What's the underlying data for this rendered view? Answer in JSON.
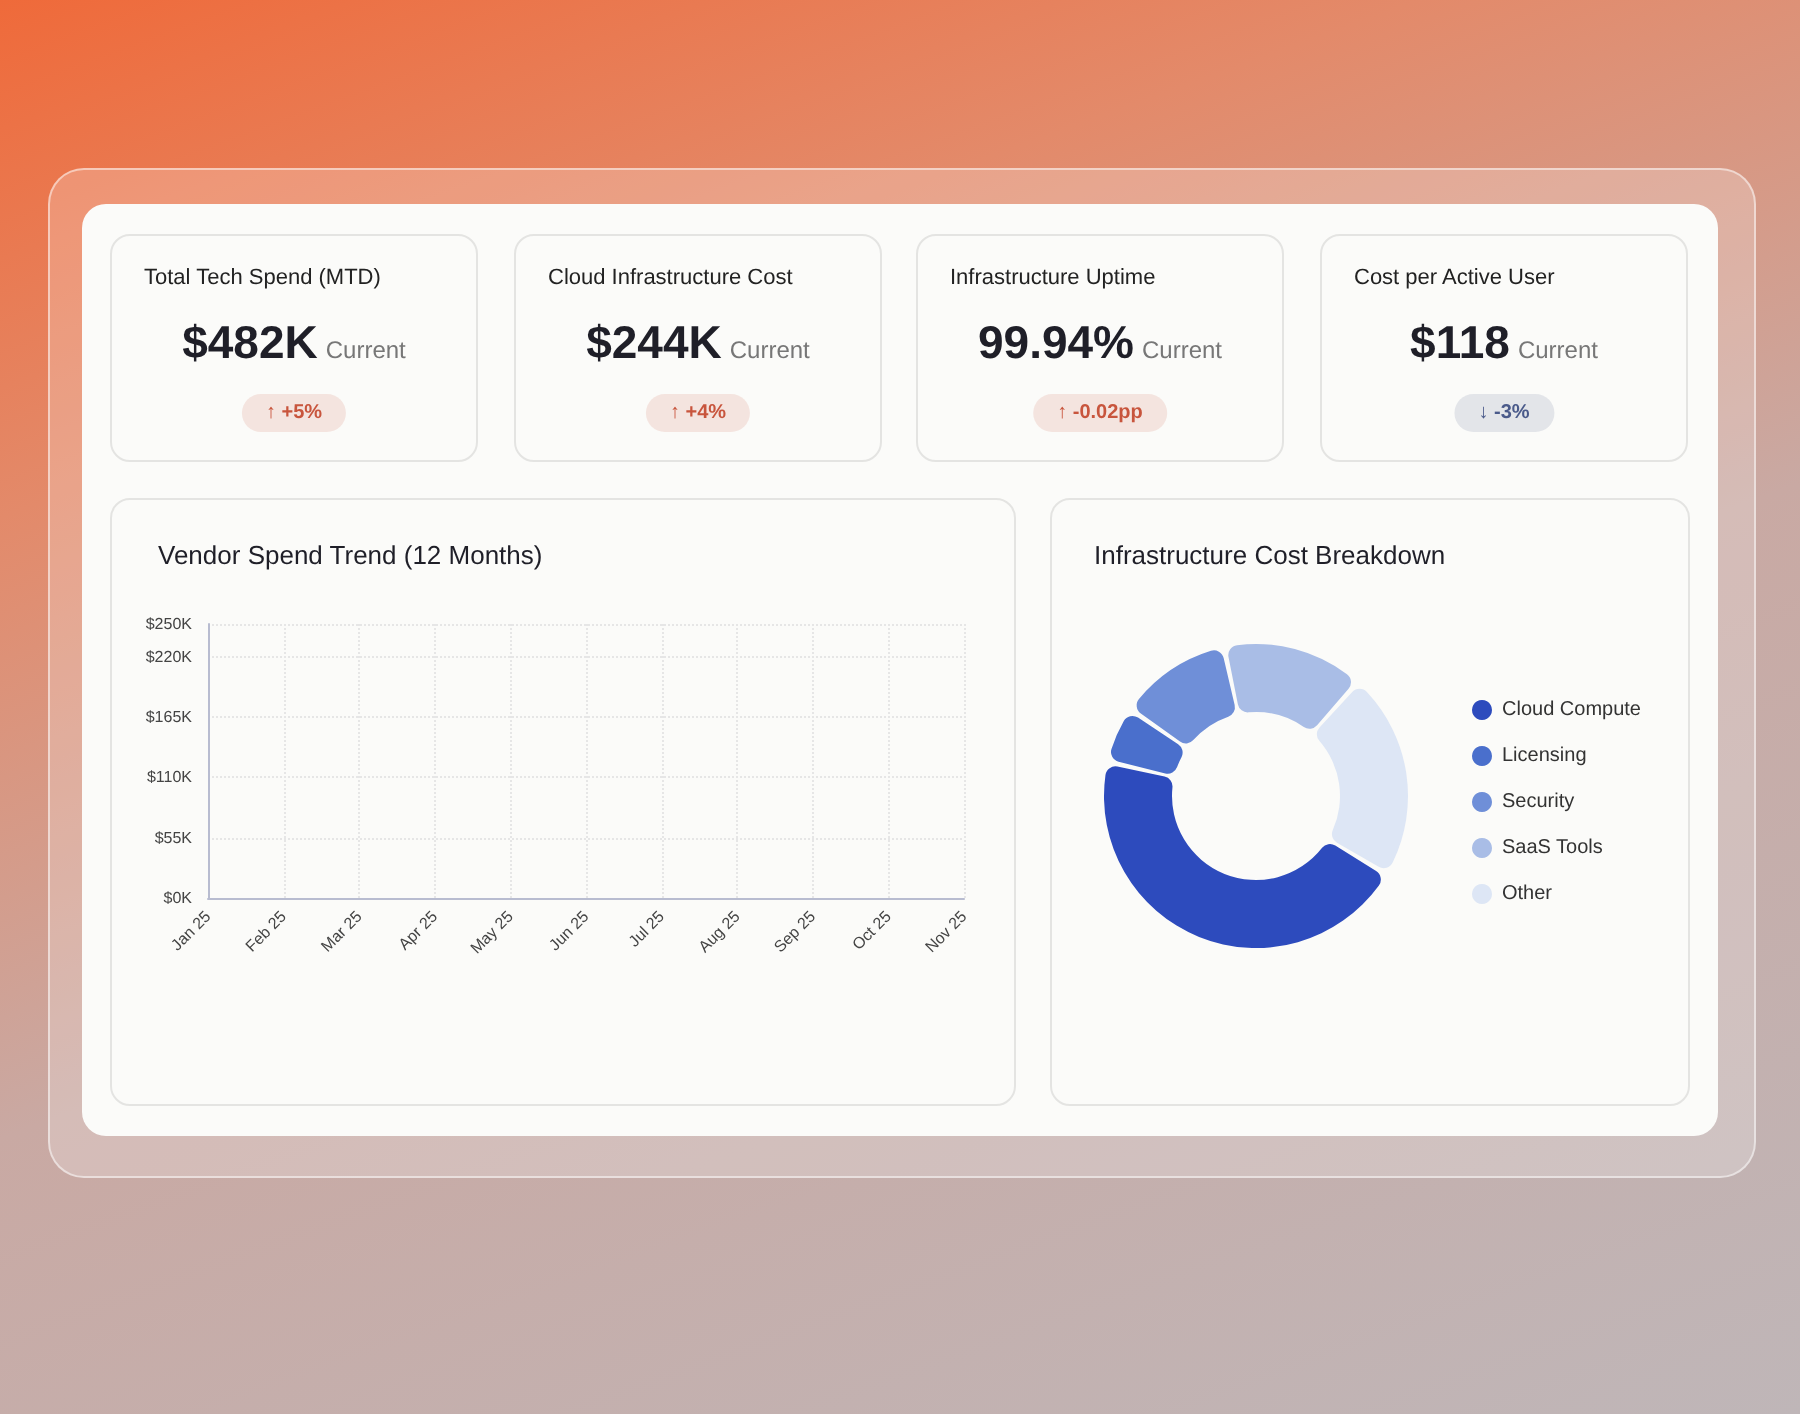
{
  "chart_data": [
    {
      "type": "other",
      "title": "Total Tech Spend (MTD)",
      "annotations": [
        "$482K",
        "Current",
        "↑ +5%"
      ],
      "color": "#c8553d"
    },
    {
      "type": "other",
      "title": "Cloud Infrastructure Cost",
      "annotations": [
        "$244K",
        "Current",
        "↑ +4%"
      ],
      "color": "#c8553d"
    },
    {
      "type": "other",
      "title": "Infrastructure Uptime",
      "annotations": [
        "99.94%",
        "Current",
        "↑ -0.02pp"
      ],
      "color": "#c8553d"
    },
    {
      "type": "other",
      "title": "Cost per Active User",
      "annotations": [
        "$118",
        "Current",
        "↓ -3%"
      ],
      "color": "#4a5a8a"
    },
    {
      "type": "line",
      "title": "Vendor Spend Trend (12 Months)",
      "categories": [
        "Jan 25",
        "Feb 25",
        "Mar 25",
        "Apr 25",
        "May 25",
        "Jun 25",
        "Jul 25",
        "Aug 25",
        "Sep 25",
        "Oct 25",
        "Nov 25"
      ],
      "series": [
        {
          "values": [
            null,
            null,
            null,
            null,
            null,
            null,
            null,
            null,
            null,
            null,
            null
          ]
        },
        {
          "values": [
            null,
            null,
            null,
            null,
            null,
            null,
            null,
            null,
            null,
            null,
            null
          ]
        },
        {
          "values": [
            null,
            null,
            null,
            null,
            null,
            null,
            null,
            null,
            null,
            null,
            null
          ]
        },
        {
          "values": [
            null,
            null,
            null,
            null,
            null,
            null,
            null,
            null,
            null,
            null,
            null
          ]
        }
      ],
      "ylim": [
        0,
        250
      ],
      "yticks": [
        {
          "value": 0,
          "label": "$0K"
        },
        {
          "value": 55,
          "label": "$55K"
        },
        {
          "value": 110,
          "label": "$110K"
        },
        {
          "value": 165,
          "label": "$165K"
        },
        {
          "value": 220,
          "label": "$220K"
        },
        {
          "value": 250,
          "label": "$250K"
        }
      ],
      "grid": true
    },
    {
      "type": "donut",
      "title": "Infrastructure Cost Breakdown",
      "categories": [
        "Cloud Compute",
        "Licensing",
        "Security",
        "SaaS Tools",
        "Other"
      ],
      "values": [
        45,
        6,
        12,
        15,
        22
      ],
      "colors": [
        "#2d4bbd",
        "#4a6fcc",
        "#6f8fd8",
        "#a9bde6",
        "#dde6f5"
      ],
      "legend": "right"
    }
  ]
}
